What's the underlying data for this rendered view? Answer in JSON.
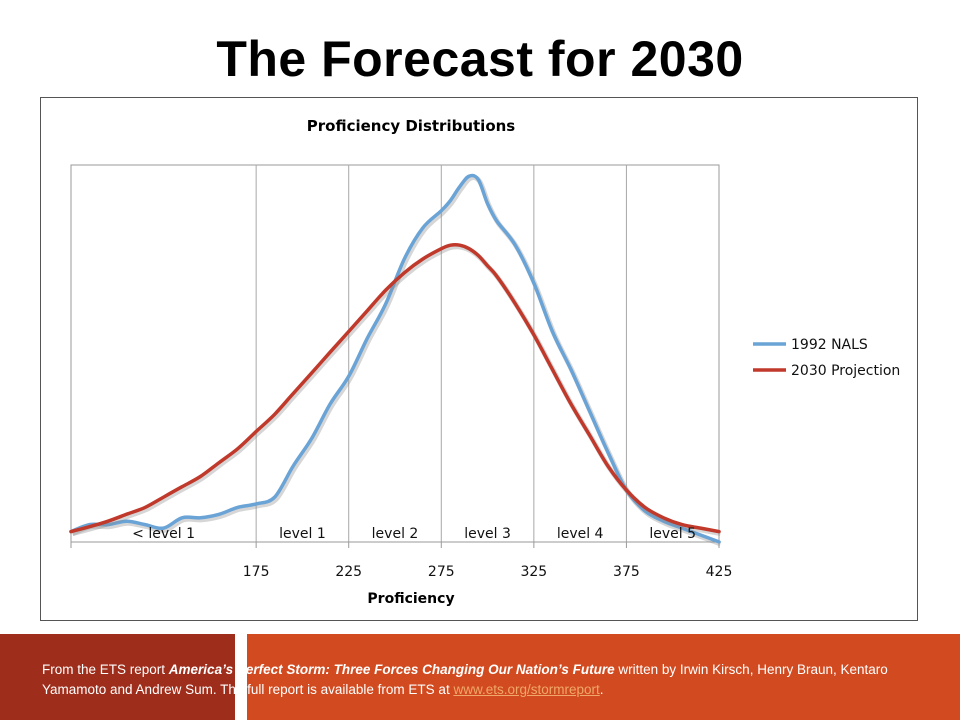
{
  "slide": {
    "title": "The Forecast for 2030"
  },
  "footer": {
    "text_1": "From the ETS report ",
    "report_title": "America’s Perfect Storm: Three Forces Changing Our Nation’s Future",
    "text_2": "  written by Irwin Kirsch, Henry Braun, Kentaro Yamamoto and Andrew Sum.  The full report is available from ETS at  ",
    "link": "www.ets.org/stormreport",
    "text_3": "."
  },
  "colors": {
    "nals": "#6aa3d6",
    "projection": "#c0392b",
    "footer_dark": "#9e2d1b",
    "footer_orange": "#d24a1f"
  },
  "chart_data": {
    "type": "line",
    "title": "Proficiency Distributions",
    "xlabel": "Proficiency",
    "ylabel": "",
    "xlim": [
      75,
      425
    ],
    "ylim": [
      0,
      1
    ],
    "x_ticks": [
      175,
      225,
      275,
      325,
      375,
      425
    ],
    "level_labels": [
      "< level 1",
      "level 1",
      "level 2",
      "level 3",
      "level 4",
      "level 5"
    ],
    "legend_position": "right",
    "grid": "vertical",
    "series": [
      {
        "name": "1992 NALS",
        "x": [
          75,
          85,
          95,
          105,
          115,
          125,
          135,
          145,
          155,
          165,
          175,
          185,
          195,
          205,
          215,
          225,
          235,
          245,
          255,
          265,
          275,
          280,
          285,
          290,
          295,
          300,
          305,
          315,
          325,
          335,
          345,
          355,
          365,
          375,
          385,
          395,
          405,
          415,
          425
        ],
        "y": [
          0.01,
          0.03,
          0.03,
          0.04,
          0.03,
          0.02,
          0.05,
          0.05,
          0.06,
          0.08,
          0.09,
          0.11,
          0.2,
          0.28,
          0.38,
          0.46,
          0.57,
          0.67,
          0.8,
          0.89,
          0.94,
          0.97,
          1.01,
          1.04,
          1.03,
          0.96,
          0.91,
          0.84,
          0.73,
          0.59,
          0.48,
          0.36,
          0.24,
          0.13,
          0.07,
          0.04,
          0.02,
          0.0,
          -0.02
        ]
      },
      {
        "name": "2030 Projection",
        "x": [
          75,
          85,
          95,
          105,
          115,
          125,
          135,
          145,
          155,
          165,
          175,
          185,
          195,
          205,
          215,
          225,
          235,
          245,
          255,
          265,
          275,
          280,
          285,
          290,
          295,
          300,
          305,
          315,
          325,
          335,
          345,
          355,
          365,
          375,
          385,
          395,
          405,
          415,
          425
        ],
        "y": [
          0.01,
          0.024,
          0.04,
          0.06,
          0.08,
          0.11,
          0.14,
          0.17,
          0.21,
          0.25,
          0.3,
          0.35,
          0.41,
          0.47,
          0.53,
          0.59,
          0.65,
          0.71,
          0.76,
          0.8,
          0.83,
          0.84,
          0.84,
          0.83,
          0.81,
          0.78,
          0.75,
          0.67,
          0.58,
          0.48,
          0.38,
          0.29,
          0.2,
          0.13,
          0.08,
          0.05,
          0.03,
          0.02,
          0.01
        ]
      }
    ]
  }
}
